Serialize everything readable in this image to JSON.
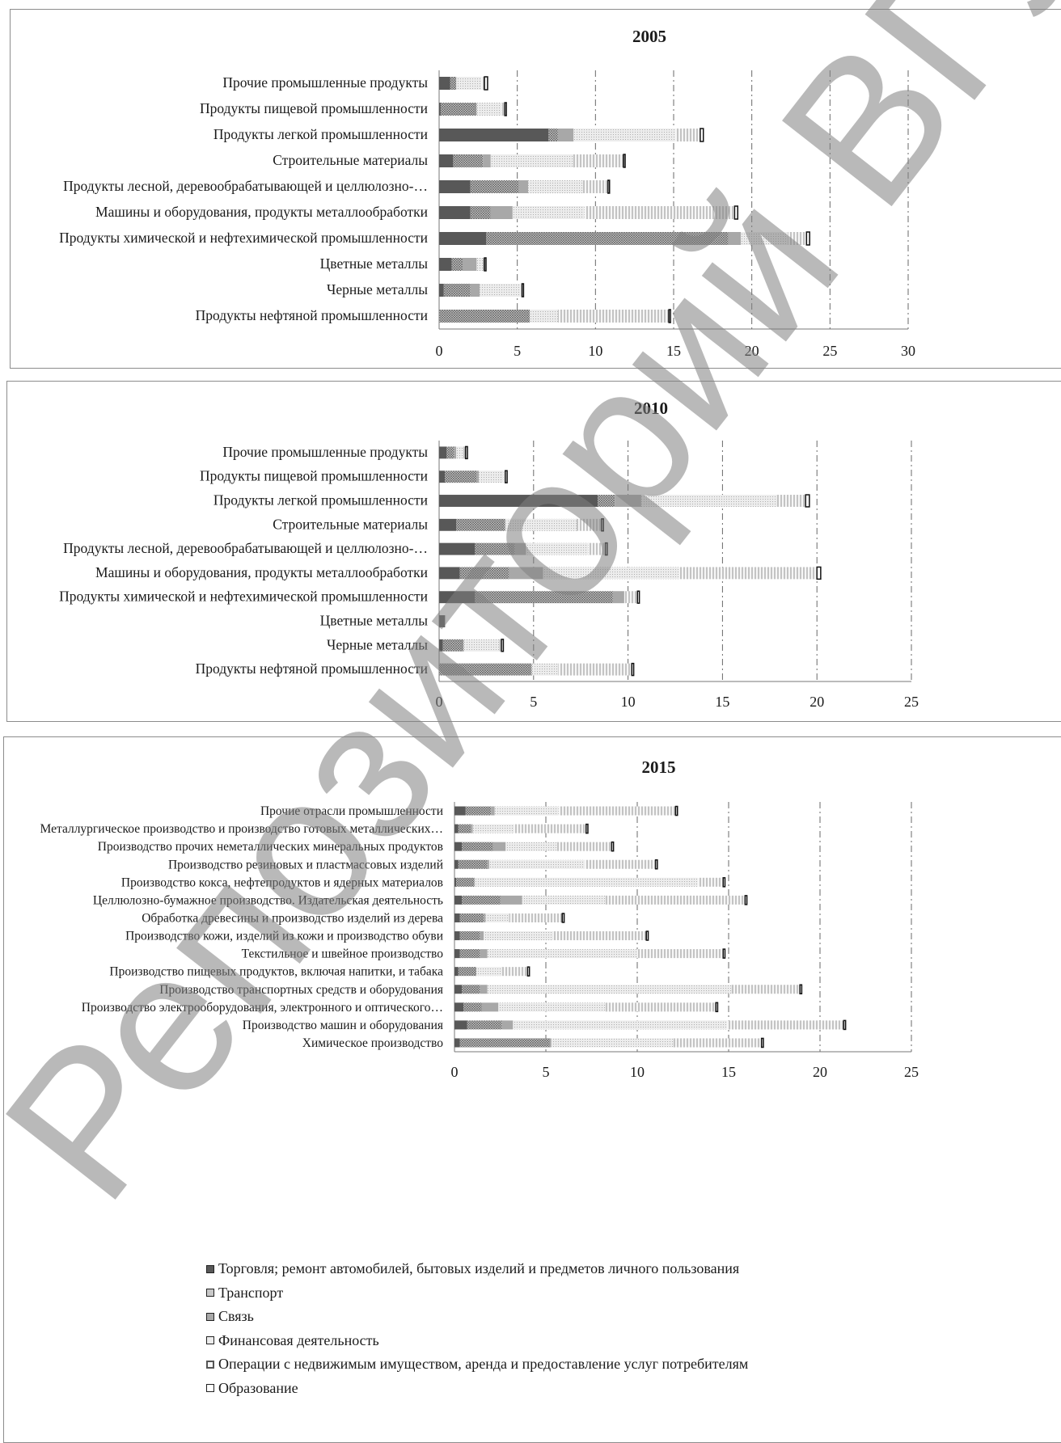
{
  "colors": {
    "trade": "#585858",
    "transport": "#c8c8c8",
    "comm": "#a8a8a8",
    "finance": "#ececec",
    "realty": "#f6f6f6",
    "edu": "#ffffff",
    "grid": "#6a6a6a",
    "watermark": "#808080"
  },
  "watermark": "Репозиторий ВГУ",
  "legend": [
    {
      "label": "Торговля; ремонт автомобилей, бытовых изделий и предметов личного пользования"
    },
    {
      "label": "Транспорт"
    },
    {
      "label": "Связь"
    },
    {
      "label": "Финансовая деятельность"
    },
    {
      "label": "Операции с недвижимым имуществом, аренда и предоставление услуг потребителям"
    },
    {
      "label": "Образование"
    }
  ],
  "chart_data": [
    {
      "type": "bar",
      "orientation": "horizontal",
      "stacked": true,
      "title": "2005",
      "xlim": [
        0,
        30
      ],
      "xticks": [
        "0",
        "5",
        "10",
        "15",
        "20",
        "25",
        "30"
      ],
      "grid": true,
      "categories": [
        "Прочие промышленные продукты",
        "Продукты пищевой промышленности",
        "Продукты легкой промышленности",
        "Строительные материалы",
        "Продукты лесной, деревообрабатывающей и целлюлозно-…",
        "Машины и оборудования, продукты металлообработки",
        "Продукты химической и нефтехимической промышленности",
        "Цветные металлы",
        "Черные металлы",
        "Продукты нефтяной  промышленности"
      ],
      "series": [
        {
          "values": [
            0.7,
            0.1,
            7.0,
            0.9,
            2.0,
            2.0,
            3.0,
            0.8,
            0.3,
            0.0
          ]
        },
        {
          "values": [
            0.4,
            2.3,
            0.6,
            1.9,
            3.1,
            1.3,
            15.5,
            0.7,
            1.7,
            5.8
          ]
        },
        {
          "values": [
            0.0,
            0.0,
            1.0,
            0.5,
            0.6,
            1.4,
            0.8,
            0.9,
            0.6,
            0.0
          ]
        },
        {
          "values": [
            1.6,
            1.6,
            6.5,
            5.3,
            3.5,
            4.6,
            3.0,
            0.4,
            2.6,
            1.8
          ]
        },
        {
          "values": [
            0.2,
            0.2,
            1.6,
            3.2,
            1.6,
            9.6,
            1.2,
            0.1,
            0.1,
            7.1
          ]
        },
        {
          "values": [
            0.2,
            0.1,
            0.2,
            0.1,
            0.1,
            0.2,
            0.2,
            0.1,
            0.1,
            0.1
          ]
        }
      ]
    },
    {
      "type": "bar",
      "orientation": "horizontal",
      "stacked": true,
      "title": "2010",
      "xlim": [
        0,
        25
      ],
      "xticks": [
        "0",
        "5",
        "10",
        "15",
        "20",
        "25"
      ],
      "grid": true,
      "categories": [
        "Прочие промышленные продукты",
        "Продукты пищевой промышленности",
        "Продукты легкой промышленности",
        "Строительные материалы",
        "Продукты лесной, деревообрабатывающей и целлюлозно-…",
        "Машины и оборудования, продукты металлообработки",
        "Продукты химической и нефтехимической промышленности",
        "Цветные металлы",
        "Черные металлы",
        "Продукты нефтяной  промышленности"
      ],
      "series": [
        {
          "values": [
            0.4,
            0.3,
            8.4,
            0.9,
            1.9,
            1.1,
            1.9,
            0.3,
            0.2,
            0.0
          ]
        },
        {
          "values": [
            0.4,
            1.7,
            0.9,
            2.6,
            2.1,
            2.6,
            7.3,
            0.0,
            1.1,
            4.9
          ]
        },
        {
          "values": [
            0.1,
            0.1,
            1.4,
            0.0,
            0.6,
            1.8,
            0.6,
            0.0,
            0.0,
            0.0
          ]
        },
        {
          "values": [
            0.4,
            1.3,
            7.2,
            3.8,
            3.3,
            7.2,
            0.0,
            0.0,
            1.9,
            1.4
          ]
        },
        {
          "values": [
            0.1,
            0.1,
            1.5,
            1.3,
            0.9,
            7.3,
            0.7,
            0.1,
            0.1,
            3.9
          ]
        },
        {
          "values": [
            0.1,
            0.1,
            0.2,
            0.1,
            0.1,
            0.2,
            0.1,
            0.0,
            0.1,
            0.1
          ]
        }
      ]
    },
    {
      "type": "bar",
      "orientation": "horizontal",
      "stacked": true,
      "title": "2015",
      "xlim": [
        0,
        25
      ],
      "xticks": [
        "0",
        "5",
        "10",
        "15",
        "20",
        "25"
      ],
      "grid": true,
      "categories": [
        "Прочие отрасли промышленности",
        "Металлургическое производство и производство готовых металлических…",
        "Производство прочих неметаллических минеральных продуктов",
        "Производство резиновых и пластмассовых изделий",
        "Производство кокса, нефтепродуктов и ядерных материалов",
        "Целлюлозно-бумажное производство. Издательская деятельность",
        "Обработка древесины и производство изделий из дерева",
        "Производство кожи, изделий из кожи и производство обуви",
        "Текстильное и швейное производство",
        "Производство пищевых продуктов, включая напитки, и табака",
        "Производство транспортных средств и оборудования",
        "Производство электрооборудования, электронного и оптического…",
        "Производство машин и оборудования",
        "Химическое производство"
      ],
      "series": [
        {
          "values": [
            0.6,
            0.2,
            0.4,
            0.2,
            0.1,
            0.4,
            0.3,
            0.3,
            0.3,
            0.2,
            0.4,
            0.5,
            0.7,
            0.3
          ]
        },
        {
          "values": [
            1.4,
            0.7,
            1.7,
            1.6,
            1.0,
            2.1,
            1.3,
            1.1,
            1.1,
            1.0,
            1.0,
            1.0,
            1.9,
            4.9
          ]
        },
        {
          "values": [
            0.2,
            0.1,
            0.7,
            0.1,
            0.0,
            1.2,
            0.1,
            0.2,
            0.4,
            0.0,
            0.4,
            0.9,
            0.6,
            0.1
          ]
        },
        {
          "values": [
            3.5,
            2.2,
            2.8,
            5.2,
            12.2,
            4.6,
            1.3,
            3.8,
            8.2,
            1.4,
            13.4,
            5.9,
            11.7,
            6.7
          ]
        },
        {
          "values": [
            6.4,
            4.0,
            3.0,
            3.9,
            1.4,
            7.6,
            2.9,
            5.1,
            4.7,
            1.4,
            3.7,
            6.0,
            6.4,
            4.8
          ]
        },
        {
          "values": [
            0.1,
            0.1,
            0.1,
            0.1,
            0.1,
            0.1,
            0.1,
            0.1,
            0.1,
            0.1,
            0.1,
            0.1,
            0.1,
            0.1
          ]
        }
      ]
    }
  ]
}
